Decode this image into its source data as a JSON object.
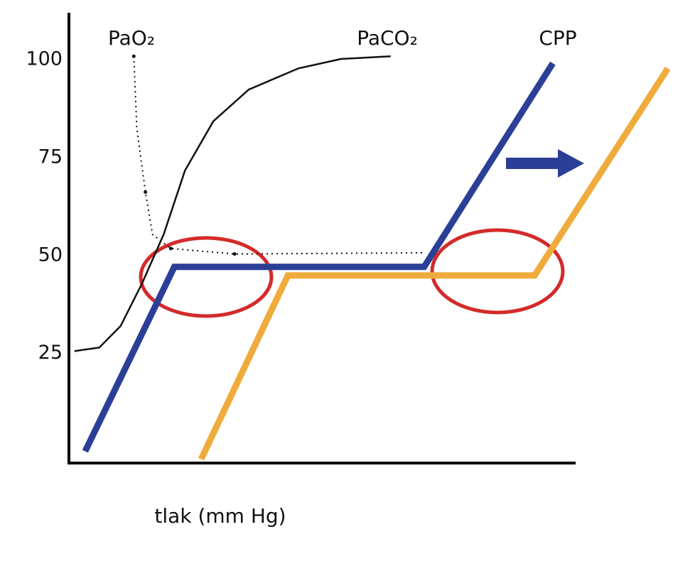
{
  "chart_data": {
    "type": "line",
    "x_label": "tlak (mm Hg)",
    "xlim": [
      0,
      100
    ],
    "ylim": [
      -3,
      112
    ],
    "yticks": [
      25,
      50,
      75,
      100
    ],
    "grid": false,
    "series": [
      {
        "color": "#2b3f97",
        "style": "solid",
        "x": [
          3.2,
          20.8,
          70.1,
          95.5
        ],
        "values": [
          0,
          47.1,
          47.1,
          99.1
        ]
      },
      {
        "color": "#efac3c",
        "style": "solid",
        "x": [
          26.1,
          43.2,
          91.9,
          118.2
        ],
        "values": [
          -2,
          44.9,
          44.9,
          97.8
        ]
      },
      {
        "name": "PaCO₂",
        "color": "#111111",
        "style": "thin",
        "x": [
          1.1,
          6,
          10.2,
          14.4,
          18.7,
          22.9,
          28.5,
          35.5,
          45.3,
          53.7,
          63.5
        ],
        "values": [
          25.6,
          26.5,
          32,
          42.8,
          55.4,
          71.7,
          84.3,
          92.4,
          97.8,
          100.2,
          100.9
        ]
      },
      {
        "name": "PaO₂",
        "color": "#111111",
        "style": "dotted",
        "x": [
          12.8,
          13.4,
          15.1,
          16.5,
          20.1,
          32.7,
          70.1
        ],
        "values": [
          100.9,
          82.5,
          66.2,
          55.4,
          51.8,
          50.4,
          50.7
        ]
      }
    ],
    "annotations": [
      "CPP"
    ]
  }
}
